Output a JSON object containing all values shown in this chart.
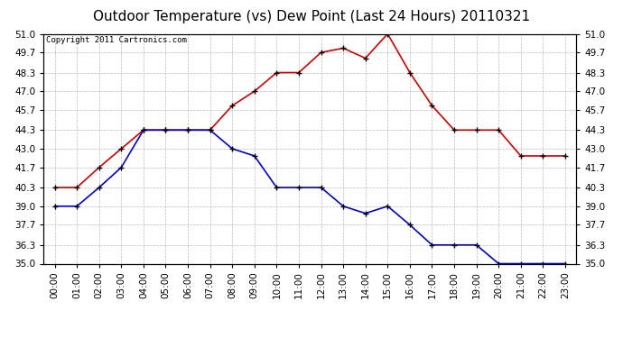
{
  "title": "Outdoor Temperature (vs) Dew Point (Last 24 Hours) 20110321",
  "copyright": "Copyright 2011 Cartronics.com",
  "hours": [
    "00:00",
    "01:00",
    "02:00",
    "03:00",
    "04:00",
    "05:00",
    "06:00",
    "07:00",
    "08:00",
    "09:00",
    "10:00",
    "11:00",
    "12:00",
    "13:00",
    "14:00",
    "15:00",
    "16:00",
    "17:00",
    "18:00",
    "19:00",
    "20:00",
    "21:00",
    "22:00",
    "23:00"
  ],
  "temp": [
    40.3,
    40.3,
    41.7,
    43.0,
    44.3,
    44.3,
    44.3,
    44.3,
    46.0,
    47.0,
    48.3,
    48.3,
    49.7,
    50.0,
    49.3,
    51.0,
    48.3,
    46.0,
    44.3,
    44.3,
    44.3,
    42.5,
    42.5,
    42.5
  ],
  "dew": [
    39.0,
    39.0,
    40.3,
    41.7,
    44.3,
    44.3,
    44.3,
    44.3,
    43.0,
    42.5,
    40.3,
    40.3,
    40.3,
    39.0,
    38.5,
    39.0,
    37.7,
    36.3,
    36.3,
    36.3,
    35.0,
    35.0,
    35.0,
    35.0
  ],
  "temp_color": "#cc0000",
  "dew_color": "#0000cc",
  "bg_color": "#ffffff",
  "grid_color": "#bbbbbb",
  "plot_bg": "#ffffff",
  "ylim_min": 35.0,
  "ylim_max": 51.0,
  "yticks": [
    35.0,
    36.3,
    37.7,
    39.0,
    40.3,
    41.7,
    43.0,
    44.3,
    45.7,
    47.0,
    48.3,
    49.7,
    51.0
  ],
  "title_fontsize": 11,
  "copyright_fontsize": 6.5,
  "tick_fontsize": 7.5,
  "marker": "+",
  "marker_size": 5,
  "linewidth": 1.2
}
